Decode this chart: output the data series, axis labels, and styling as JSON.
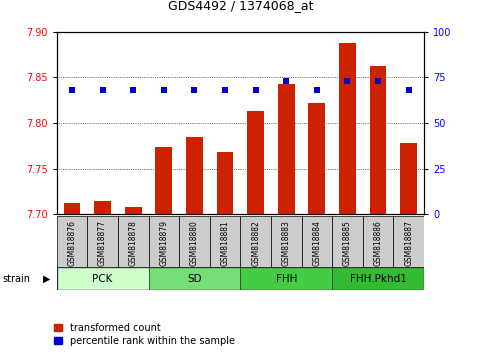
{
  "title": "GDS4492 / 1374068_at",
  "samples": [
    "GSM818876",
    "GSM818877",
    "GSM818878",
    "GSM818879",
    "GSM818880",
    "GSM818881",
    "GSM818882",
    "GSM818883",
    "GSM818884",
    "GSM818885",
    "GSM818886",
    "GSM818887"
  ],
  "red_values": [
    7.712,
    7.714,
    7.708,
    7.774,
    7.785,
    7.768,
    7.813,
    7.843,
    7.822,
    7.888,
    7.862,
    7.778
  ],
  "blue_values": [
    68,
    68,
    68,
    68,
    68,
    68,
    68,
    73,
    68,
    73,
    73,
    68
  ],
  "ylim_left": [
    7.7,
    7.9
  ],
  "ylim_right": [
    0,
    100
  ],
  "yticks_left": [
    7.7,
    7.75,
    7.8,
    7.85,
    7.9
  ],
  "yticks_right": [
    0,
    25,
    50,
    75,
    100
  ],
  "groups": [
    {
      "label": "PCK",
      "start": 0,
      "end": 3,
      "color": "#ccffcc"
    },
    {
      "label": "SD",
      "start": 3,
      "end": 6,
      "color": "#77dd77"
    },
    {
      "label": "FHH",
      "start": 6,
      "end": 9,
      "color": "#44cc44"
    },
    {
      "label": "FHH.Pkhd1",
      "start": 9,
      "end": 12,
      "color": "#33bb33"
    }
  ],
  "bar_color": "#cc2200",
  "dot_color": "#0000cc",
  "label_bg_color": "#cccccc",
  "legend_red": "transformed count",
  "legend_blue": "percentile rank within the sample",
  "strain_label": "strain"
}
